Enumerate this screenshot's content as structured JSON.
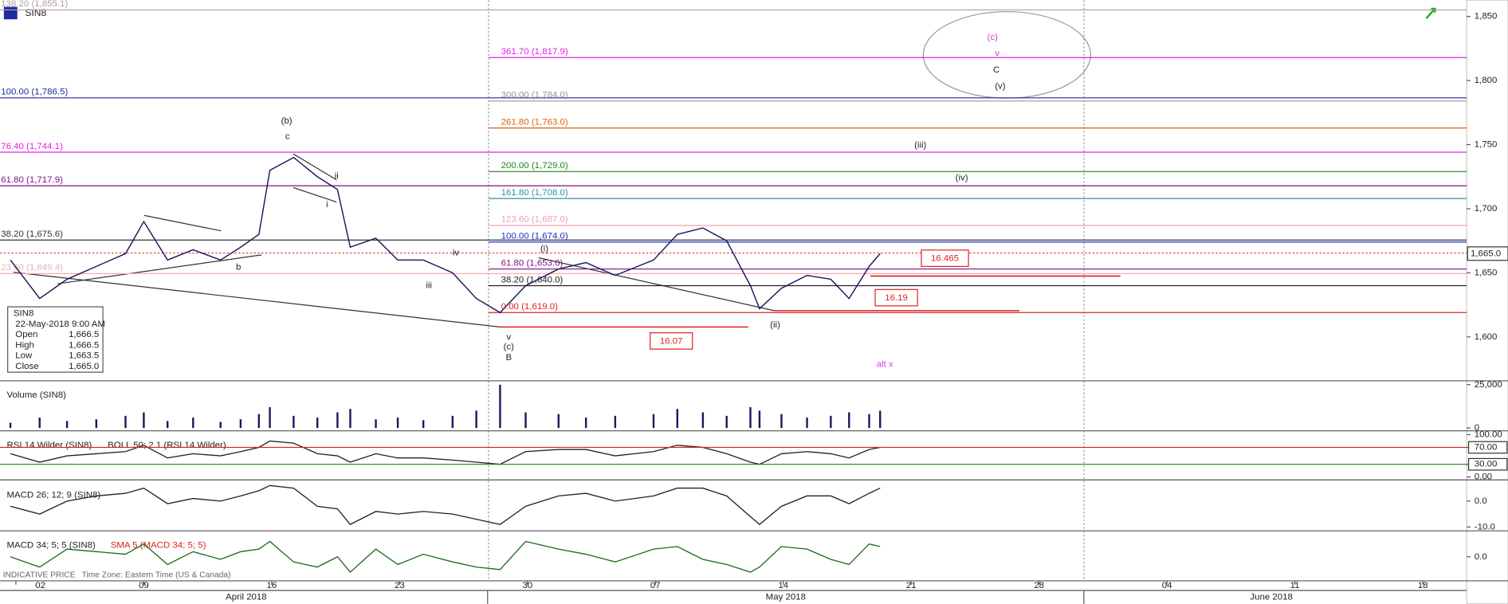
{
  "main": {
    "title": "SIN8",
    "ylim": [
      1566.5,
      1862.75
    ],
    "xlim": [
      -0.87,
      79.4
    ],
    "yticks": [
      {
        "value": 1850,
        "label": "1,850"
      },
      {
        "value": 1800,
        "label": "1,800"
      },
      {
        "value": 1750,
        "label": "1,750"
      },
      {
        "value": 1700,
        "label": "1,700"
      },
      {
        "value": 1650,
        "label": "1,650"
      },
      {
        "value": 1600,
        "label": "1,600"
      }
    ],
    "price": {
      "color": "#1a1a5e",
      "x": [
        -0.3,
        1.3,
        2.8,
        4.4,
        6.0,
        7.0,
        8.3,
        9.7,
        11.2,
        12.3,
        13.3,
        13.9,
        15.2,
        16.5,
        17.6,
        18.3,
        19.7,
        20.9,
        22.3,
        23.9,
        25.2,
        26.5,
        27.9,
        29.7,
        31.2,
        32.8,
        34.9,
        36.2,
        37.6,
        38.9,
        40.2,
        40.7,
        41.9,
        43.3,
        44.6,
        45.6,
        46.7,
        47.3
      ],
      "values": [
        1660,
        1630,
        1645,
        1655,
        1665,
        1690,
        1660,
        1668,
        1660,
        1670,
        1680,
        1730,
        1740,
        1725,
        1715,
        1670,
        1677,
        1660,
        1660,
        1650,
        1630,
        1619,
        1640,
        1653,
        1658,
        1648,
        1660,
        1680,
        1685,
        1675,
        1640,
        1622,
        1638,
        1648,
        1645,
        1630,
        1655,
        1665
      ]
    },
    "last_price": {
      "value": 1665,
      "label": "1,665.0"
    },
    "fib_left": [
      {
        "label": "138.20 (1,855.1)",
        "value": 1855.1,
        "color": "#b0a0a0"
      },
      {
        "label": "100.00 (1,786.5)",
        "value": 1786.5,
        "color": "#1f2a9e"
      },
      {
        "label": "76.40 (1,744.1)",
        "value": 1744.1,
        "color": "#e020e0"
      },
      {
        "label": "61.80 (1,717.9)",
        "value": 1717.9,
        "color": "#801080"
      },
      {
        "label": "38.20 (1,675.6)",
        "value": 1675.6,
        "color": "#333333"
      },
      {
        "label": "23.60 (1,649.4)",
        "value": 1649.4,
        "color": "#f0b0b0"
      }
    ],
    "fib_right": [
      {
        "label": "361.70 (1,817.9)",
        "value": 1817.9,
        "color": "#e020e0"
      },
      {
        "label": "300.00 (1,784.0)",
        "value": 1784.0,
        "color": "#a09090"
      },
      {
        "label": "261.80 (1,763.0)",
        "value": 1763.0,
        "color": "#e06010"
      },
      {
        "label": "200.00 (1,729.0)",
        "value": 1729.0,
        "color": "#208020"
      },
      {
        "label": "161.80 (1,708.0)",
        "value": 1708.0,
        "color": "#3090a0"
      },
      {
        "label": "123.60 (1,687.0)",
        "value": 1687.0,
        "color": "#f0a0b0"
      },
      {
        "label": "100.00 (1,674.0)",
        "value": 1674.0,
        "color": "#1f2ad0"
      },
      {
        "label": "61.80 (1,653.0)",
        "value": 1653.0,
        "color": "#801080"
      },
      {
        "label": "38.20 (1,640.0)",
        "value": 1640.0,
        "color": "#222222"
      },
      {
        "label": "0.00 (1,619.0)",
        "value": 1619.0,
        "color": "#e02020"
      }
    ],
    "wave_labels": [
      "(b)",
      "c",
      "b",
      "ii",
      "i",
      "iv",
      "iii",
      "v",
      "(c)",
      "B",
      "(i)",
      "(ii)",
      "(iii)",
      "(iv)"
    ],
    "ellipse_labels": [
      "(c)",
      "v",
      "C",
      "(v)"
    ],
    "alt_label": "alt x",
    "boxes": [
      "16.465",
      "16.19",
      "16.07"
    ]
  },
  "info_box": {
    "symbol": "SIN8",
    "time": "22-May-2018 9:00 AM",
    "rows": [
      [
        "Open",
        "1,666.5"
      ],
      [
        "High",
        "1,666.5"
      ],
      [
        "Low",
        "1,663.5"
      ],
      [
        "Close",
        "1,665.0"
      ]
    ]
  },
  "volume": {
    "title": "Volume (SIN8)",
    "ylim": [
      0,
      25000
    ],
    "yticks": [
      {
        "value": 25000,
        "label": "25,000"
      },
      0
    ],
    "values": [
      3000,
      6000,
      4000,
      5000,
      7000,
      9000,
      4000,
      6000,
      3500,
      5000,
      8000,
      12000,
      7000,
      6000,
      9000,
      11000,
      5000,
      6000,
      4500,
      7000,
      10000,
      25000,
      9000,
      8000,
      6000,
      7000,
      8000,
      11000,
      9000,
      7000,
      12000,
      10000,
      8000,
      6000,
      7000,
      9000,
      8000,
      10000
    ]
  },
  "rsi": {
    "title": "RSI 14 Wilder (SIN8)",
    "overlay": "BOLL 50; 2.1 (RSI 14 Wilder)",
    "ylim": [
      0,
      100
    ],
    "yticks": [
      {
        "value": 100,
        "label": "100.00"
      },
      {
        "value": 70,
        "label": "70.00"
      },
      {
        "value": 30,
        "label": "30.00"
      },
      {
        "value": 0,
        "label": "0.00"
      }
    ],
    "values": [
      55,
      35,
      50,
      55,
      60,
      75,
      45,
      55,
      50,
      60,
      70,
      85,
      80,
      55,
      50,
      35,
      55,
      45,
      45,
      40,
      35,
      30,
      60,
      65,
      65,
      50,
      60,
      75,
      70,
      55,
      35,
      30,
      55,
      60,
      55,
      45,
      65,
      70
    ]
  },
  "macd": {
    "title": "MACD 26; 12; 9 (SIN8)",
    "ylim": [
      -11.1,
      6.7
    ],
    "yticks": [
      {
        "value": 0,
        "label": "0.0"
      },
      {
        "value": -10,
        "label": "-10.0"
      }
    ],
    "values": [
      -2,
      -5,
      0,
      2,
      3,
      5,
      -1,
      1,
      0,
      2,
      4,
      6,
      5,
      -2,
      -3,
      -9,
      -4,
      -5,
      -4,
      -5,
      -7,
      -9,
      -2,
      2,
      3,
      0,
      2,
      5,
      5,
      2,
      -6,
      -9,
      -2,
      2,
      2,
      -1,
      3,
      5
    ]
  },
  "macd2": {
    "title": "MACD 34; 5; 5 (SIN8)",
    "overlay": "SMA 5 (MACD 34; 5; 5)",
    "ylim": [
      -9,
      9
    ],
    "yticks": [
      {
        "value": 0,
        "label": "0.0"
      }
    ],
    "values": [
      0,
      -4,
      3,
      2,
      1,
      5,
      -3,
      2,
      -1,
      2,
      3,
      6,
      -2,
      -4,
      0,
      -6,
      3,
      -3,
      1,
      -2,
      -4,
      -5,
      6,
      3,
      1,
      -2,
      3,
      4,
      -1,
      -3,
      -6,
      -4,
      4,
      3,
      -1,
      -3,
      5,
      4
    ]
  },
  "x_axis": {
    "ticks": [
      {
        "value": 0,
        "label": "02"
      },
      {
        "value": 7,
        "label": "09"
      },
      {
        "value": 14,
        "label": "16"
      },
      {
        "value": 21,
        "label": "23"
      },
      {
        "value": 28,
        "label": "30"
      },
      {
        "value": 35,
        "label": "07"
      },
      {
        "value": 42,
        "label": "14"
      },
      {
        "value": 49,
        "label": "21"
      },
      {
        "value": 56,
        "label": "28"
      },
      {
        "value": 63,
        "label": "04"
      },
      {
        "value": 70,
        "label": "11"
      },
      {
        "value": 77,
        "label": "18"
      }
    ],
    "months": [
      "April 2018",
      "May 2018",
      "June 2018"
    ]
  },
  "footer": {
    "price_type": "INDICATIVE PRICE",
    "timezone": "Time Zone: Eastern Time (US & Canada)"
  }
}
